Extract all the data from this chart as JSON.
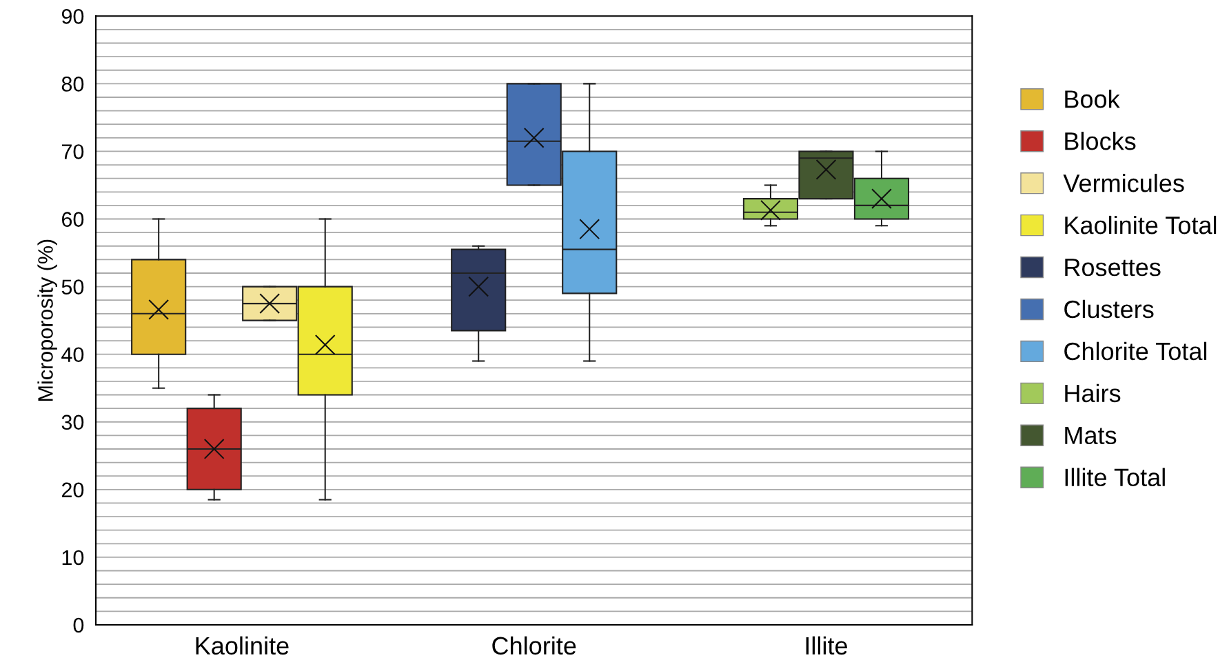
{
  "chart_data": {
    "type": "box",
    "ylabel": "Microporosity (%)",
    "categories": [
      "Kaolinite",
      "Chlorite",
      "Illite"
    ],
    "ylim": [
      0,
      90
    ],
    "yticks": [
      0,
      {
        "value": 2,
        "label": null
      },
      {
        "value": 4,
        "label": null
      },
      {
        "value": 6,
        "label": null
      },
      {
        "value": 8,
        "label": null
      },
      10,
      {
        "value": 12,
        "label": null
      },
      {
        "value": 14,
        "label": null
      },
      {
        "value": 16,
        "label": null
      },
      {
        "value": 18,
        "label": null
      },
      20,
      {
        "value": 22,
        "label": null
      },
      {
        "value": 24,
        "label": null
      },
      {
        "value": 26,
        "label": null
      },
      {
        "value": 28,
        "label": null
      },
      30,
      {
        "value": 32,
        "label": null
      },
      {
        "value": 34,
        "label": null
      },
      {
        "value": 36,
        "label": null
      },
      {
        "value": 38,
        "label": null
      },
      40,
      {
        "value": 42,
        "label": null
      },
      {
        "value": 44,
        "label": null
      },
      {
        "value": 46,
        "label": null
      },
      {
        "value": 48,
        "label": null
      },
      50,
      {
        "value": 52,
        "label": null
      },
      {
        "value": 54,
        "label": null
      },
      {
        "value": 56,
        "label": null
      },
      {
        "value": 58,
        "label": null
      },
      60,
      {
        "value": 62,
        "label": null
      },
      {
        "value": 64,
        "label": null
      },
      {
        "value": 66,
        "label": null
      },
      {
        "value": 68,
        "label": null
      },
      70,
      {
        "value": 72,
        "label": null
      },
      {
        "value": 74,
        "label": null
      },
      {
        "value": 76,
        "label": null
      },
      {
        "value": 78,
        "label": null
      },
      80,
      {
        "value": 82,
        "label": null
      },
      {
        "value": 84,
        "label": null
      },
      {
        "value": 86,
        "label": null
      },
      {
        "value": 88,
        "label": null
      },
      90
    ],
    "grid": "y",
    "legend": "right",
    "marker": "cross",
    "series": [
      {
        "name": "Book",
        "color": "#e3b932",
        "boxes": [
          {
            "low": 35,
            "q1": 40,
            "median": 46,
            "q3": 54,
            "high": 60,
            "mean": 46.6
          },
          null,
          null
        ]
      },
      {
        "name": "Blocks",
        "color": "#c0302c",
        "boxes": [
          {
            "low": 18.5,
            "q1": 20,
            "median": 26,
            "q3": 32,
            "high": 34,
            "mean": 26
          },
          null,
          null
        ]
      },
      {
        "name": "Vermicules",
        "color": "#f3e39a",
        "boxes": [
          {
            "low": 45,
            "q1": 45,
            "median": 47.5,
            "q3": 50,
            "high": 50,
            "mean": 47.5
          },
          null,
          null
        ]
      },
      {
        "name": "Kaolinite Total",
        "color": "#efe836",
        "boxes": [
          {
            "low": 18.5,
            "q1": 34,
            "median": 40,
            "q3": 50,
            "high": 60,
            "mean": 41.4
          },
          null,
          null
        ]
      },
      {
        "name": "Rosettes",
        "color": "#2e3a5e",
        "boxes": [
          null,
          {
            "low": 39,
            "q1": 43.5,
            "median": 52,
            "q3": 55.5,
            "high": 56,
            "mean": 50
          },
          null
        ]
      },
      {
        "name": "Clusters",
        "color": "#456fb0",
        "boxes": [
          null,
          {
            "low": 65,
            "q1": 65,
            "median": 71.5,
            "q3": 80,
            "high": 80,
            "mean": 72
          },
          null
        ]
      },
      {
        "name": "Chlorite Total",
        "color": "#64a9dd",
        "boxes": [
          null,
          {
            "low": 39,
            "q1": 49,
            "median": 55.5,
            "q3": 70,
            "high": 80,
            "mean": 58.5
          },
          null
        ]
      },
      {
        "name": "Hairs",
        "color": "#a2c95a",
        "boxes": [
          null,
          null,
          {
            "low": 59,
            "q1": 60,
            "median": 61,
            "q3": 63,
            "high": 65,
            "mean": 61.3
          }
        ]
      },
      {
        "name": "Mats",
        "color": "#445730",
        "boxes": [
          null,
          null,
          {
            "low": 63,
            "q1": 63,
            "median": 69,
            "q3": 70,
            "high": 70,
            "mean": 67.3
          }
        ]
      },
      {
        "name": "Illite Total",
        "color": "#5fad56",
        "boxes": [
          null,
          null,
          {
            "low": 59,
            "q1": 60,
            "median": 62,
            "q3": 66,
            "high": 70,
            "mean": 63
          }
        ]
      }
    ]
  }
}
